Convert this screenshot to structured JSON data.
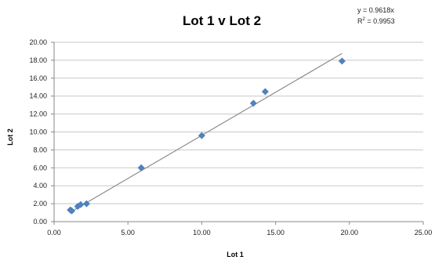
{
  "chart_data": {
    "type": "scatter",
    "title": "Lot 1 v Lot 2",
    "xlabel": "Lot 1",
    "ylabel": "Lot 2",
    "xlim": [
      0,
      25
    ],
    "ylim": [
      0,
      20
    ],
    "x_ticks": [
      "0.00",
      "5.00",
      "10.00",
      "15.00",
      "20.00",
      "25.00"
    ],
    "y_ticks": [
      "0.00",
      "2.00",
      "4.00",
      "6.00",
      "8.00",
      "10.00",
      "12.00",
      "14.00",
      "16.00",
      "18.00",
      "20.00"
    ],
    "grid": "horizontal",
    "legend": "none",
    "marker_color": "#4F81BD",
    "trendline_color": "#8C8C8C",
    "series": [
      {
        "points": [
          {
            "x": 1.1,
            "y": 1.3
          },
          {
            "x": 1.2,
            "y": 1.2
          },
          {
            "x": 1.6,
            "y": 1.7
          },
          {
            "x": 1.8,
            "y": 1.9
          },
          {
            "x": 2.2,
            "y": 2.0
          },
          {
            "x": 5.9,
            "y": 6.0
          },
          {
            "x": 10.0,
            "y": 9.6
          },
          {
            "x": 13.5,
            "y": 13.2
          },
          {
            "x": 14.3,
            "y": 14.5
          },
          {
            "x": 19.5,
            "y": 17.9
          }
        ]
      }
    ],
    "trendline": {
      "slope": 0.9618,
      "intercept": 0,
      "x_range": [
        1.1,
        19.5
      ],
      "equation": "y = 0.9618x",
      "r2_label": "R",
      "r2_sup": "2",
      "r2_value": " = 0.9953"
    }
  }
}
